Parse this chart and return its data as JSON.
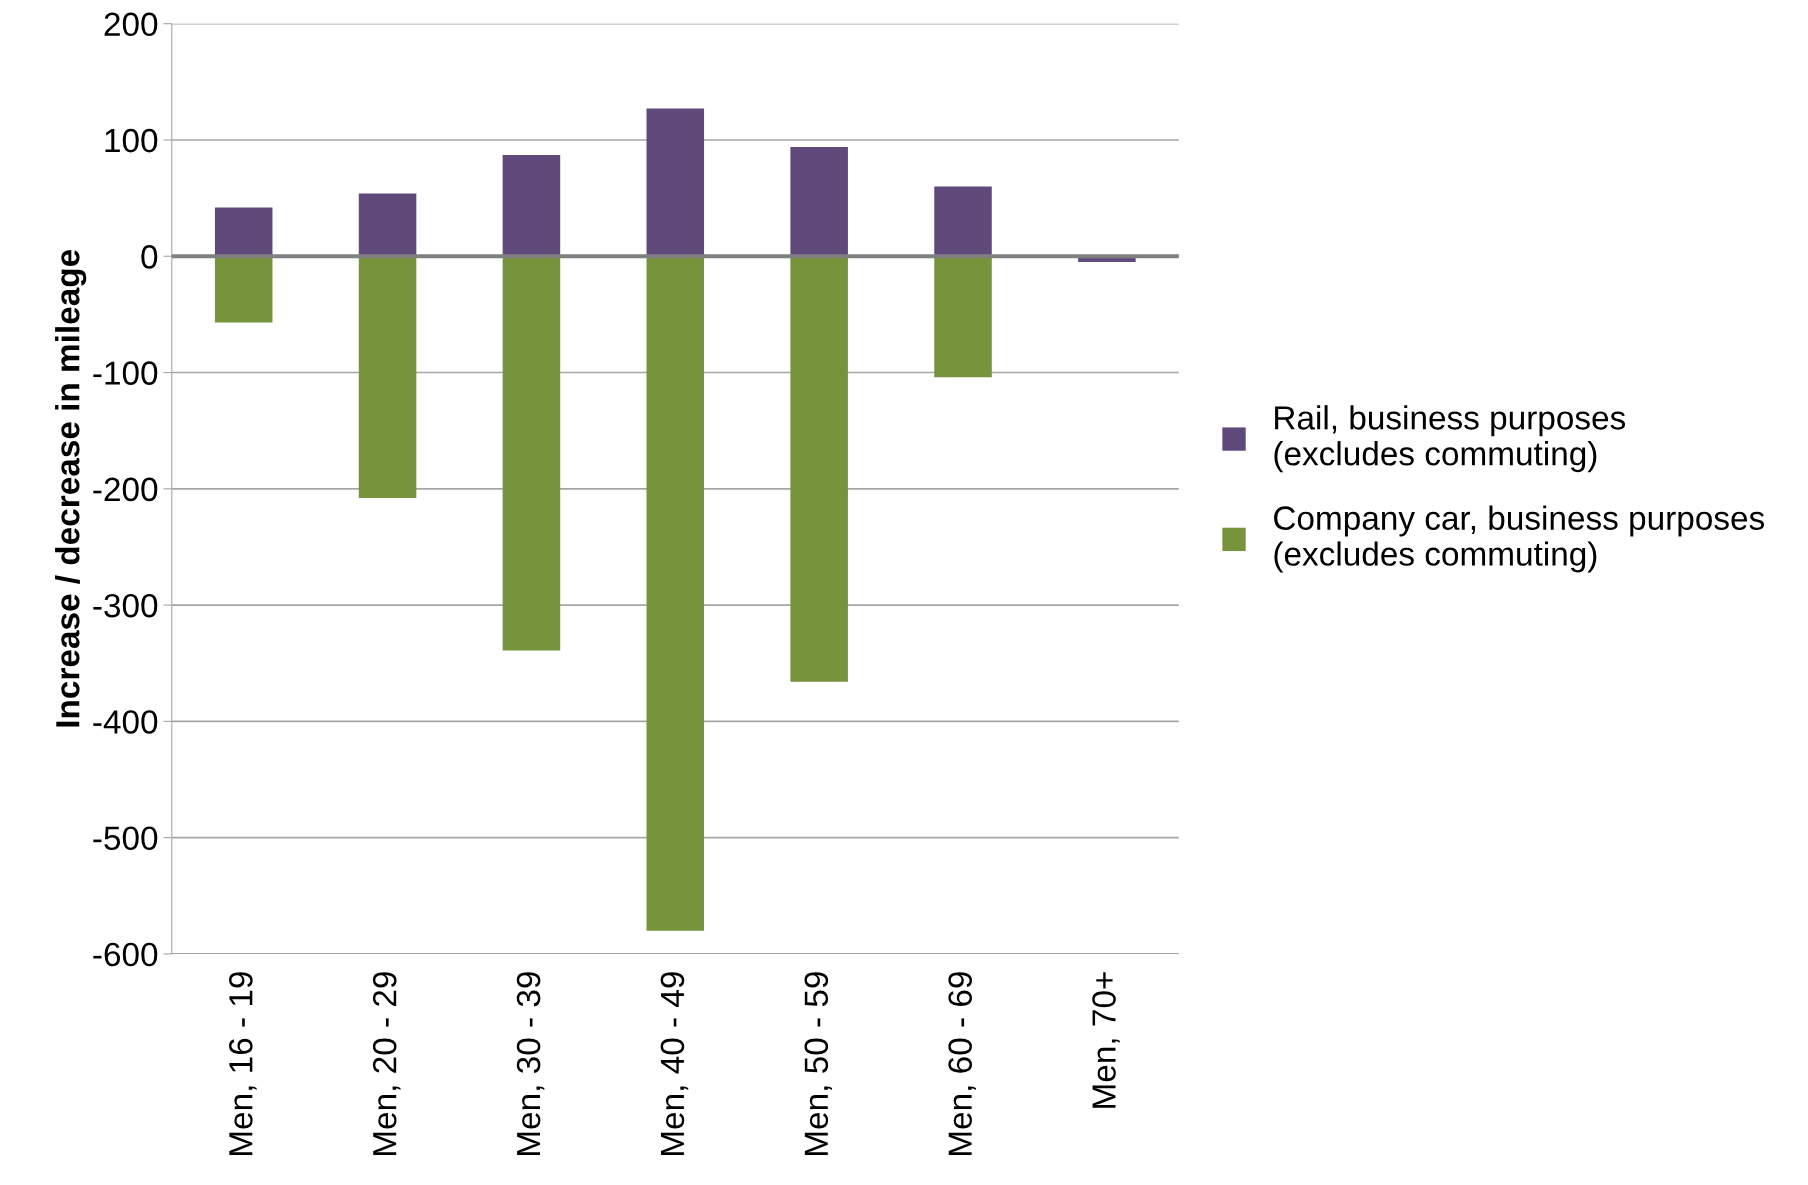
{
  "chart_data": {
    "type": "bar",
    "stacked": true,
    "ylabel": "Increase / decrease in mileage",
    "categories": [
      "Men, 16 - 19",
      "Men, 20 - 29",
      "Men, 30 - 39",
      "Men, 40 - 49",
      "Men, 50 - 59",
      "Men, 60 - 69",
      "Men, 70+"
    ],
    "series": [
      {
        "name": "Rail, business purposes\n(excludes commuting)",
        "color": "#604a7b",
        "values": [
          42,
          54,
          87,
          127,
          94,
          60,
          -5
        ]
      },
      {
        "name": "Company car, business purposes\n(excludes commuting)",
        "color": "#77933c",
        "values": [
          -57,
          -208,
          -339,
          -580,
          -366,
          -104,
          null
        ]
      }
    ],
    "ylim": [
      -600,
      200
    ],
    "yticks": [
      -600,
      -500,
      -400,
      -300,
      -200,
      -100,
      0,
      100,
      200
    ],
    "ref_lines": [
      {
        "axis": "y",
        "value": 0,
        "color": "#808080"
      }
    ],
    "grid": "y",
    "legend": "right"
  }
}
